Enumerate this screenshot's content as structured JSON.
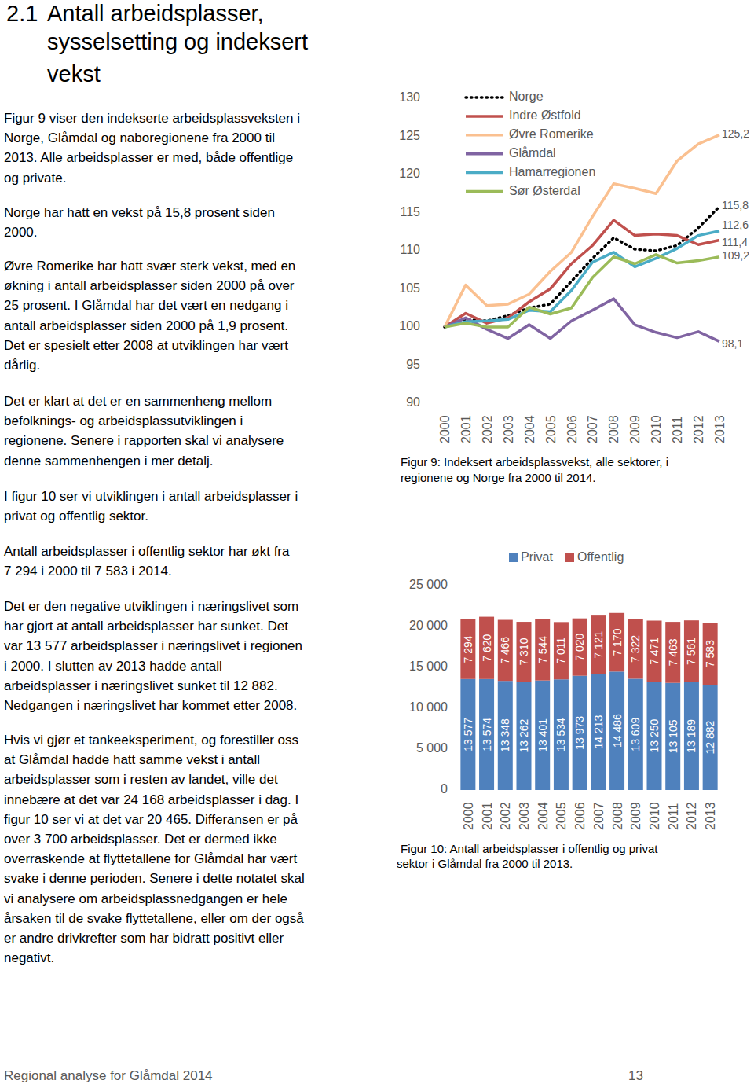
{
  "document": {
    "heading": {
      "number": "2.1",
      "lines": [
        "Antall arbeidsplasser,",
        "sysselsetting og indeksert",
        "vekst"
      ]
    },
    "paragraphs": [
      [
        "Figur 9 viser den indekserte arbeidsplassveksten i",
        "Norge, Glåmdal og naboregionene fra 2000 til",
        "2013. Alle arbeidsplasser er med, både offentlige",
        "og private."
      ],
      [
        "Norge har hatt en vekst på 15,8 prosent siden",
        "2000."
      ],
      [
        "Øvre Romerike har hatt svær sterk vekst, med en",
        "økning i antall arbeidsplasser siden 2000 på over",
        "25 prosent. I Glåmdal har det vært en nedgang i",
        "antall arbeidsplasser siden 2000 på 1,9 prosent.",
        "Det er spesielt etter 2008 at utviklingen har vært",
        "dårlig."
      ],
      [
        "Det er klart at det er en sammenheng mellom",
        "befolknings- og arbeidsplassutviklingen i",
        "regionene. Senere i rapporten skal vi analysere",
        "denne sammenhengen i mer detalj."
      ],
      [
        "I figur 10 ser vi utviklingen i antall arbeidsplasser i",
        "privat og offentlig sektor."
      ],
      [
        "Antall arbeidsplasser i offentlig sektor har økt fra",
        "7 294 i 2000 til 7 583 i 2014."
      ],
      [
        "Det er den negative utviklingen i næringslivet som",
        "har gjort at antall arbeidsplasser har sunket. Det",
        "var 13 577 arbeidsplasser i næringslivet i regionen",
        "i 2000. I slutten av 2013 hadde antall",
        "arbeidsplasser i næringslivet sunket til 12 882.",
        "Nedgangen i næringslivet har kommet etter 2008."
      ],
      [
        "Hvis vi gjør et tankeeksperiment, og forestiller oss",
        "at Glåmdal hadde hatt samme vekst i antall",
        "arbeidsplasser som i resten av landet, ville det",
        "innebære at det var 24 168 arbeidsplasser i dag. I",
        "figur 10 ser vi at det var 20 465. Differansen er på",
        "over 3 700 arbeidsplasser. Det er dermed ikke",
        "overraskende at flyttetallene for Glåmdal har vært",
        "svake i denne perioden. Senere i dette notatet skal",
        "vi analysere om arbeidsplassnedgangen er hele",
        "årsaken til de svake flyttetallene, eller om der også",
        "er andre drivkrefter som har bidratt positivt eller",
        "negativt."
      ]
    ],
    "footer": {
      "left": "Regional analyse for Glåmdal 2014",
      "page": 13
    }
  },
  "chart_data": [
    {
      "type": "line",
      "caption": [
        "Figur 9: Indeksert arbeidsplassvekst, alle sektorer, i",
        "regionene og Norge fra 2000 til 2014."
      ],
      "categories": [
        "2000",
        "2001",
        "2002",
        "2003",
        "2004",
        "2005",
        "2006",
        "2007",
        "2008",
        "2009",
        "2010",
        "2011",
        "2012",
        "2013"
      ],
      "ylim": [
        90,
        130
      ],
      "yticks": [
        90,
        95,
        100,
        105,
        110,
        115,
        120,
        125,
        130
      ],
      "grid": false,
      "legend": "top-left",
      "series": [
        {
          "name": "Norge",
          "color": "#000000",
          "line_style": "dotted",
          "values": [
            100,
            101,
            100.8,
            101.5,
            102.5,
            103,
            106,
            109,
            111.7,
            110.2,
            110,
            110.7,
            113,
            115.8
          ],
          "value_labels": [
            null,
            null,
            null,
            null,
            null,
            null,
            null,
            null,
            null,
            null,
            null,
            null,
            null,
            "115,8"
          ]
        },
        {
          "name": "Indre Østfold",
          "color": "#c0504d",
          "line_style": "solid",
          "values": [
            100,
            101.8,
            100.5,
            101.2,
            103.3,
            105,
            108.3,
            110.7,
            114,
            112,
            112.2,
            112,
            110.8,
            111.4
          ],
          "value_labels": [
            null,
            null,
            null,
            null,
            null,
            null,
            null,
            null,
            null,
            null,
            null,
            null,
            null,
            "111,4"
          ]
        },
        {
          "name": "Øvre Romerike",
          "color": "#fac090",
          "line_style": "solid",
          "values": [
            100,
            105.5,
            102.8,
            103,
            104.3,
            107.3,
            109.8,
            114.5,
            118.8,
            118.2,
            117.5,
            121.8,
            124,
            125.2
          ],
          "value_labels": [
            null,
            null,
            null,
            null,
            null,
            null,
            null,
            null,
            null,
            null,
            null,
            null,
            null,
            "125,2"
          ]
        },
        {
          "name": "Glåmdal",
          "color": "#8064a2",
          "line_style": "solid",
          "values": [
            100,
            101.2,
            99.7,
            98.5,
            100.3,
            98.5,
            100.8,
            102.2,
            103.7,
            100.3,
            99.3,
            98.6,
            99.4,
            98.1
          ],
          "value_labels": [
            null,
            null,
            null,
            null,
            null,
            null,
            null,
            null,
            null,
            null,
            null,
            null,
            null,
            "98,1"
          ]
        },
        {
          "name": "Hamarregionen",
          "color": "#4bacc6",
          "line_style": "solid",
          "values": [
            100,
            100.7,
            100.8,
            101,
            102.2,
            102,
            104.8,
            108.5,
            109.8,
            107.9,
            109,
            110.3,
            112,
            112.6
          ],
          "value_labels": [
            null,
            null,
            null,
            null,
            null,
            null,
            null,
            null,
            null,
            null,
            null,
            null,
            null,
            "112,6"
          ]
        },
        {
          "name": "Sør Østerdal",
          "color": "#9bbb59",
          "line_style": "solid",
          "values": [
            100,
            100.5,
            100,
            100,
            102.6,
            101.7,
            102.5,
            106.5,
            109.2,
            108.3,
            109.5,
            108.4,
            108.7,
            109.2
          ],
          "value_labels": [
            null,
            null,
            null,
            null,
            null,
            null,
            null,
            null,
            null,
            null,
            null,
            null,
            null,
            "109,2"
          ]
        }
      ]
    },
    {
      "type": "bar",
      "stacked": true,
      "data_labels": true,
      "grid": false,
      "legend": "top",
      "caption": [
        "Figur 10: Antall arbeidsplasser i offentlig og privat",
        "sektor i Glåmdal fra 2000 til 2013."
      ],
      "categories": [
        "2000",
        "2001",
        "2002",
        "2003",
        "2004",
        "2005",
        "2006",
        "2007",
        "2008",
        "2009",
        "2010",
        "2011",
        "2012",
        "2013"
      ],
      "ylim": [
        0,
        25000
      ],
      "yticks": [
        0,
        {
          "value": 5000,
          "label": "5 000"
        },
        {
          "value": 10000,
          "label": "10 000"
        },
        {
          "value": 15000,
          "label": "15 000"
        },
        {
          "value": 20000,
          "label": "20 000"
        },
        {
          "value": 25000,
          "label": "25 000"
        }
      ],
      "series": [
        {
          "name": "Privat",
          "color": "#4f81bd",
          "values": [
            13577,
            13574,
            13348,
            13262,
            13401,
            13534,
            13973,
            14213,
            14486,
            13609,
            13250,
            13105,
            13189,
            12882
          ],
          "value_labels": [
            "13 577",
            "13 574",
            "13 348",
            "13 262",
            "13 401",
            "13 534",
            "13 973",
            "14 213",
            "14 486",
            "13 609",
            "13 250",
            "13 105",
            "13 189",
            "12 882"
          ]
        },
        {
          "name": "Offentlig",
          "color": "#c0504d",
          "values": [
            7294,
            7620,
            7466,
            7310,
            7544,
            7011,
            7020,
            7121,
            7170,
            7322,
            7471,
            7463,
            7561,
            7583
          ],
          "value_labels": [
            "7 294",
            "7 620",
            "7 466",
            "7 310",
            "7 544",
            "7 011",
            "7 020",
            "7 121",
            "7 170",
            "7 322",
            "7 471",
            "7 463",
            "7 561",
            "7 583"
          ]
        }
      ]
    }
  ]
}
